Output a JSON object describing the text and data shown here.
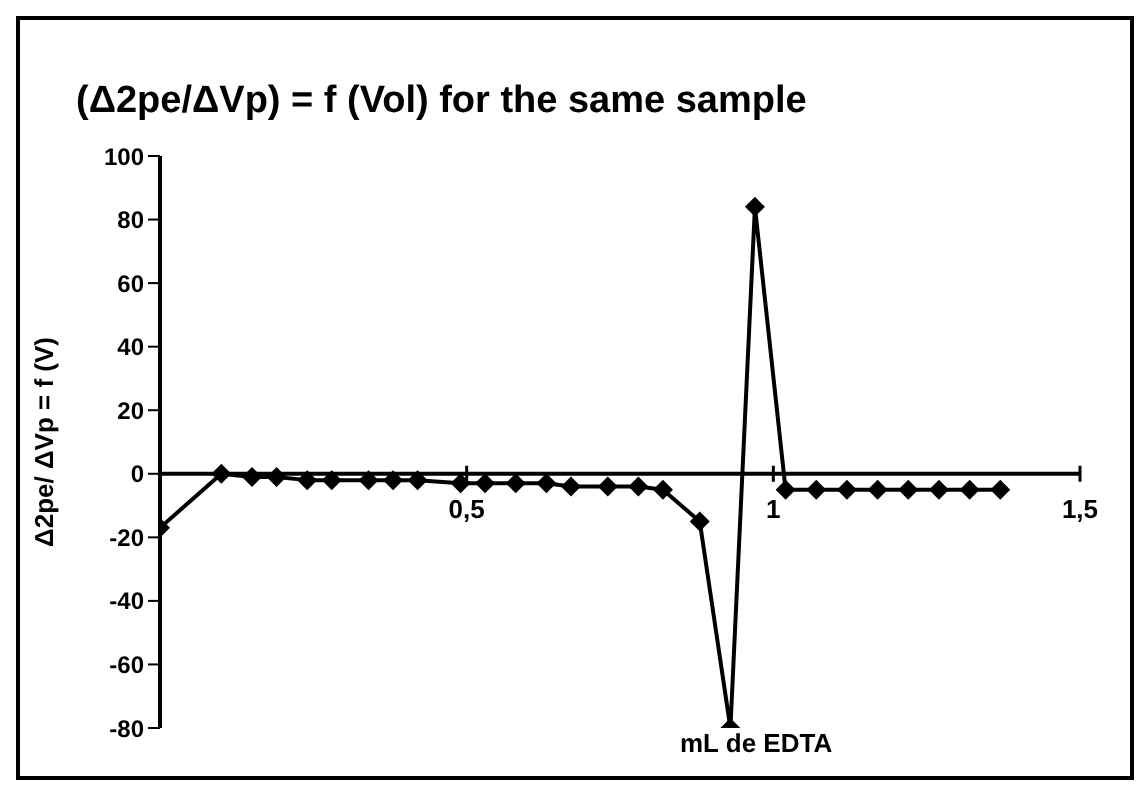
{
  "chart_data": {
    "type": "line",
    "title": "(Δ2pe/ΔVp) = f (Vol) for the same sample",
    "xlabel": "mL de EDTA",
    "ylabel": "Δ2pe/ ΔVp = f (V)",
    "x": [
      0,
      0.1,
      0.15,
      0.19,
      0.24,
      0.28,
      0.34,
      0.38,
      0.42,
      0.49,
      0.53,
      0.58,
      0.63,
      0.67,
      0.73,
      0.78,
      0.82,
      0.88,
      0.93,
      0.97,
      1.02,
      1.07,
      1.12,
      1.17,
      1.22,
      1.27,
      1.32,
      1.37
    ],
    "series": [
      {
        "color": "#000000",
        "values": [
          -17,
          0,
          -1,
          -1,
          -2,
          -2,
          -2,
          -2,
          -2,
          -3,
          -3,
          -3,
          -3,
          -4,
          -4,
          -4,
          -5,
          -15,
          -80,
          84,
          -5,
          -5,
          -5,
          -5,
          -5,
          -5,
          -5,
          -5
        ]
      }
    ],
    "xlim": [
      0,
      1.5
    ],
    "xticks": [
      {
        "value": 0.5,
        "label": "0,5"
      },
      {
        "value": 1,
        "label": "1"
      },
      {
        "value": 1.5,
        "label": "1,5"
      }
    ],
    "ylim": [
      -80,
      100
    ],
    "yticks": [
      100,
      80,
      60,
      40,
      20,
      0,
      -20,
      -40,
      -60,
      -80
    ],
    "marker": "diamond",
    "line_style": "solid",
    "grid": false,
    "legend": false
  }
}
